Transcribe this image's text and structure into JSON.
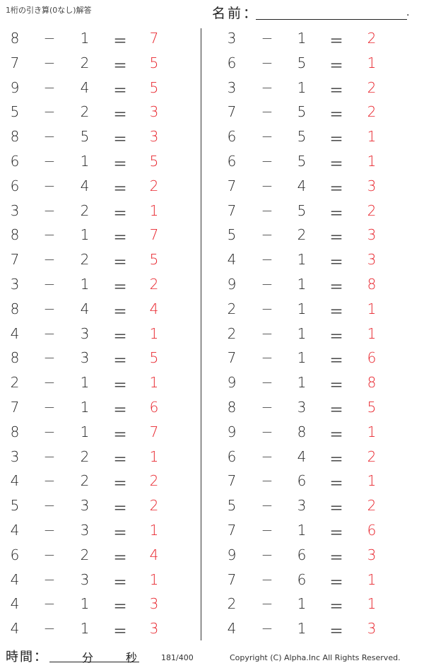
{
  "header": {
    "title": "1桁の引き算(0なし)解答",
    "name_label": "名前：",
    "name_end": "."
  },
  "symbols": {
    "minus": "−",
    "equals": "＝"
  },
  "colors": {
    "answer": "#e8232b"
  },
  "left": [
    [
      8,
      1,
      7
    ],
    [
      7,
      2,
      5
    ],
    [
      9,
      4,
      5
    ],
    [
      5,
      2,
      3
    ],
    [
      8,
      5,
      3
    ],
    [
      6,
      1,
      5
    ],
    [
      6,
      4,
      2
    ],
    [
      3,
      2,
      1
    ],
    [
      8,
      1,
      7
    ],
    [
      7,
      2,
      5
    ],
    [
      3,
      1,
      2
    ],
    [
      8,
      4,
      4
    ],
    [
      4,
      3,
      1
    ],
    [
      8,
      3,
      5
    ],
    [
      2,
      1,
      1
    ],
    [
      7,
      1,
      6
    ],
    [
      8,
      1,
      7
    ],
    [
      3,
      2,
      1
    ],
    [
      4,
      2,
      2
    ],
    [
      5,
      3,
      2
    ],
    [
      4,
      3,
      1
    ],
    [
      6,
      2,
      4
    ],
    [
      4,
      3,
      1
    ],
    [
      4,
      1,
      3
    ],
    [
      4,
      1,
      3
    ]
  ],
  "right": [
    [
      3,
      1,
      2
    ],
    [
      6,
      5,
      1
    ],
    [
      3,
      1,
      2
    ],
    [
      7,
      5,
      2
    ],
    [
      6,
      5,
      1
    ],
    [
      6,
      5,
      1
    ],
    [
      7,
      4,
      3
    ],
    [
      7,
      5,
      2
    ],
    [
      5,
      2,
      3
    ],
    [
      4,
      1,
      3
    ],
    [
      9,
      1,
      8
    ],
    [
      2,
      1,
      1
    ],
    [
      2,
      1,
      1
    ],
    [
      7,
      1,
      6
    ],
    [
      9,
      1,
      8
    ],
    [
      8,
      3,
      5
    ],
    [
      9,
      8,
      1
    ],
    [
      6,
      4,
      2
    ],
    [
      7,
      6,
      1
    ],
    [
      5,
      3,
      2
    ],
    [
      7,
      1,
      6
    ],
    [
      9,
      6,
      3
    ],
    [
      7,
      6,
      1
    ],
    [
      2,
      1,
      1
    ],
    [
      4,
      1,
      3
    ]
  ],
  "footer": {
    "time_label": "時間：",
    "minutes": "分",
    "seconds": "秒",
    "page": "181/400",
    "copyright": "Copyright (C) Alpha.Inc All Rights Reserved."
  }
}
